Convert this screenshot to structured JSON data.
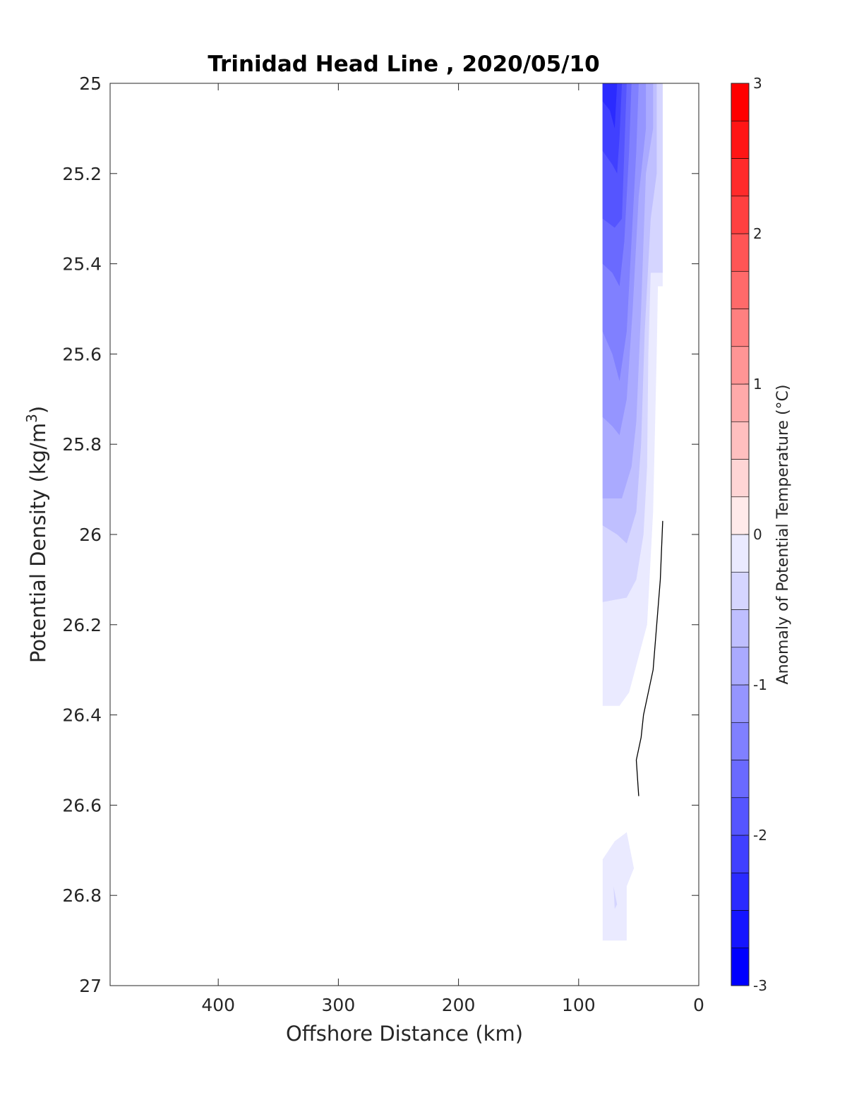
{
  "chart_data": {
    "type": "contour",
    "title": "Trinidad Head Line , 2020/05/10",
    "xlabel": "Offshore Distance (km)",
    "ylabel_main": "Potential Density (kg/m",
    "ylabel_sup": "3",
    "ylabel_tail": ")",
    "xlim": [
      490,
      0
    ],
    "ylim": [
      25,
      27
    ],
    "y_reversed": true,
    "x_reversed": true,
    "xticks": [
      400,
      300,
      200,
      100,
      0
    ],
    "xtick_labels": [
      "400",
      "300",
      "200",
      "100",
      "0"
    ],
    "yticks": [
      25,
      25.2,
      25.4,
      25.6,
      25.8,
      26,
      26.2,
      26.4,
      26.6,
      26.8,
      27
    ],
    "ytick_labels": [
      "25",
      "25.2",
      "25.4",
      "25.6",
      "25.8",
      "26",
      "26.2",
      "26.4",
      "26.6",
      "26.8",
      "27"
    ],
    "colorbar": {
      "label": "Anomaly of Potential Temperature (°C)",
      "range": [
        -3,
        3
      ],
      "step": 0.25,
      "ticks": [
        -3,
        -2,
        -1,
        0,
        1,
        2,
        3
      ],
      "tick_labels": [
        "-3",
        "-2",
        "-1",
        "0",
        "1",
        "2",
        "3"
      ],
      "min_color": "#0000ff",
      "mid_color": "#ffffff",
      "max_color": "#ff0000"
    },
    "stations_km": [
      80,
      70,
      60,
      50,
      40,
      30
    ],
    "anomaly_regions": [
      {
        "level": -0.25,
        "polygon": [
          [
            80,
            25
          ],
          [
            30,
            25
          ],
          [
            30,
            25.45
          ],
          [
            34,
            25.45
          ],
          [
            35,
            25.6
          ],
          [
            38,
            25.95
          ],
          [
            43,
            26.2
          ],
          [
            58,
            26.35
          ],
          [
            66,
            26.38
          ],
          [
            80,
            26.38
          ]
        ]
      },
      {
        "level": -0.25,
        "polygon": [
          [
            80,
            26.9
          ],
          [
            60,
            26.9
          ],
          [
            60,
            26.78
          ],
          [
            54,
            26.74
          ],
          [
            60,
            26.66
          ],
          [
            70,
            26.68
          ],
          [
            80,
            26.72
          ]
        ]
      },
      {
        "level": -0.5,
        "polygon": [
          [
            80,
            25
          ],
          [
            30,
            25
          ],
          [
            30,
            25.42
          ],
          [
            40,
            25.42
          ],
          [
            42,
            25.6
          ],
          [
            43,
            25.85
          ],
          [
            46,
            26.0
          ],
          [
            52,
            26.1
          ],
          [
            60,
            26.14
          ],
          [
            80,
            26.15
          ]
        ]
      },
      {
        "level": -0.75,
        "polygon": [
          [
            80,
            25
          ],
          [
            35,
            25
          ],
          [
            35,
            25.2
          ],
          [
            40,
            25.3
          ],
          [
            45,
            25.55
          ],
          [
            48,
            25.8
          ],
          [
            52,
            25.95
          ],
          [
            60,
            26.02
          ],
          [
            68,
            26.0
          ],
          [
            80,
            25.98
          ]
        ]
      },
      {
        "level": -1.0,
        "polygon": [
          [
            80,
            25
          ],
          [
            38,
            25
          ],
          [
            38,
            25.1
          ],
          [
            44,
            25.2
          ],
          [
            48,
            25.5
          ],
          [
            52,
            25.75
          ],
          [
            56,
            25.85
          ],
          [
            64,
            25.92
          ],
          [
            70,
            25.92
          ],
          [
            80,
            25.92
          ]
        ]
      },
      {
        "level": -1.25,
        "polygon": [
          [
            80,
            25
          ],
          [
            44,
            25
          ],
          [
            44,
            25.1
          ],
          [
            50,
            25.25
          ],
          [
            55,
            25.5
          ],
          [
            60,
            25.7
          ],
          [
            66,
            25.78
          ],
          [
            72,
            25.76
          ],
          [
            80,
            25.74
          ]
        ]
      },
      {
        "level": -1.5,
        "polygon": [
          [
            80,
            25
          ],
          [
            50,
            25
          ],
          [
            52,
            25.15
          ],
          [
            56,
            25.35
          ],
          [
            60,
            25.55
          ],
          [
            66,
            25.66
          ],
          [
            72,
            25.6
          ],
          [
            80,
            25.55
          ]
        ]
      },
      {
        "level": -1.75,
        "polygon": [
          [
            80,
            25
          ],
          [
            56,
            25
          ],
          [
            58,
            25.15
          ],
          [
            62,
            25.35
          ],
          [
            66,
            25.45
          ],
          [
            72,
            25.42
          ],
          [
            80,
            25.4
          ]
        ]
      },
      {
        "level": -2.0,
        "polygon": [
          [
            80,
            25
          ],
          [
            60,
            25
          ],
          [
            62,
            25.15
          ],
          [
            64,
            25.3
          ],
          [
            70,
            25.32
          ],
          [
            80,
            25.3
          ]
        ]
      },
      {
        "level": -2.25,
        "polygon": [
          [
            80,
            25
          ],
          [
            64,
            25
          ],
          [
            66,
            25.12
          ],
          [
            68,
            25.2
          ],
          [
            72,
            25.18
          ],
          [
            80,
            25.15
          ]
        ]
      },
      {
        "level": -2.5,
        "polygon": [
          [
            80,
            25
          ],
          [
            68,
            25
          ],
          [
            70,
            25.1
          ],
          [
            74,
            25.06
          ],
          [
            80,
            25.04
          ]
        ]
      },
      {
        "level": -0.5,
        "polygon": [
          [
            71,
            26.78
          ],
          [
            68,
            26.82
          ],
          [
            70,
            26.83
          ]
        ]
      }
    ],
    "zero_contour": [
      [
        30,
        25.97
      ],
      [
        32,
        26.1
      ],
      [
        38,
        26.3
      ],
      [
        46,
        26.4
      ],
      [
        48,
        26.45
      ],
      [
        52,
        26.5
      ],
      [
        50,
        26.58
      ]
    ]
  }
}
